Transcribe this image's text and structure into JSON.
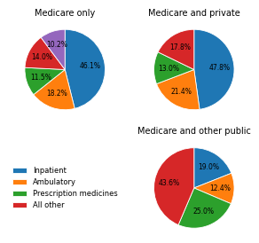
{
  "chart_data": [
    {
      "type": "pie",
      "title": "Medicare only",
      "categories": [
        "Inpatient",
        "Ambulatory",
        "Prescription medicines",
        "All other",
        null
      ],
      "values": [
        46.1,
        18.2,
        11.5,
        14.0,
        10.2
      ],
      "value_labels": [
        "46.1%",
        "18.2%",
        "11.5%",
        "14.0%",
        "10.2%"
      ],
      "data_labels": true
    },
    {
      "type": "pie",
      "title": "Medicare and private",
      "categories": [
        "Inpatient",
        "Ambulatory",
        "Prescription medicines",
        "All other"
      ],
      "values": [
        47.8,
        21.4,
        13.0,
        17.8
      ],
      "value_labels": [
        "47.8%",
        "21.4%",
        "13.0%",
        "17.8%"
      ],
      "data_labels": true,
      "legend": "center"
    },
    {
      "type": "pie",
      "title": "Medicare and other public",
      "categories": [
        "Inpatient",
        "Ambulatory",
        "Prescription medicines",
        "All other"
      ],
      "values": [
        19.0,
        12.4,
        25.0,
        43.6
      ],
      "value_labels": [
        "19.0%",
        "12.4%",
        "25.0%",
        "43.6%"
      ],
      "data_labels": true
    }
  ]
}
